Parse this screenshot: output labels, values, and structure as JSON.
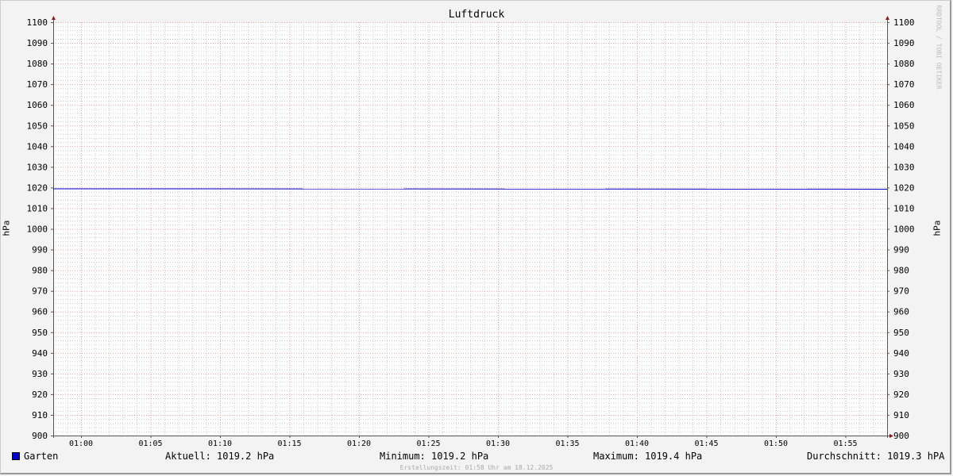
{
  "chart_data": {
    "type": "line",
    "title": "Luftdruck",
    "ylabel": "hPa",
    "ylabel_right": "hPa",
    "ylim": [
      900,
      1100
    ],
    "y_ticks": [
      900,
      910,
      920,
      930,
      940,
      950,
      960,
      970,
      980,
      990,
      1000,
      1010,
      1020,
      1030,
      1040,
      1050,
      1060,
      1070,
      1080,
      1090,
      1100
    ],
    "x_range": [
      "00:58",
      "01:58"
    ],
    "x_ticks": [
      "01:00",
      "01:05",
      "01:10",
      "01:15",
      "01:20",
      "01:25",
      "01:30",
      "01:35",
      "01:40",
      "01:45",
      "01:50",
      "01:55"
    ],
    "grid": true,
    "series": [
      {
        "name": "Garten",
        "color": "#0000cc",
        "x": [
          "00:58",
          "01:58"
        ],
        "values": [
          1019.4,
          1019.2
        ]
      }
    ]
  },
  "legend": {
    "series_name": "Garten",
    "current": "Aktuell: 1019.2 hPa",
    "minimum": "Minimum: 1019.2 hPa",
    "maximum": "Maximum: 1019.4 hPa",
    "average": "Durchschnitt: 1019.3 hPA"
  },
  "footer": "Erstellungszeit: 01:58 Uhr am 18.12.2025",
  "watermark": "RRDTOOL / TOBI OETIKER"
}
